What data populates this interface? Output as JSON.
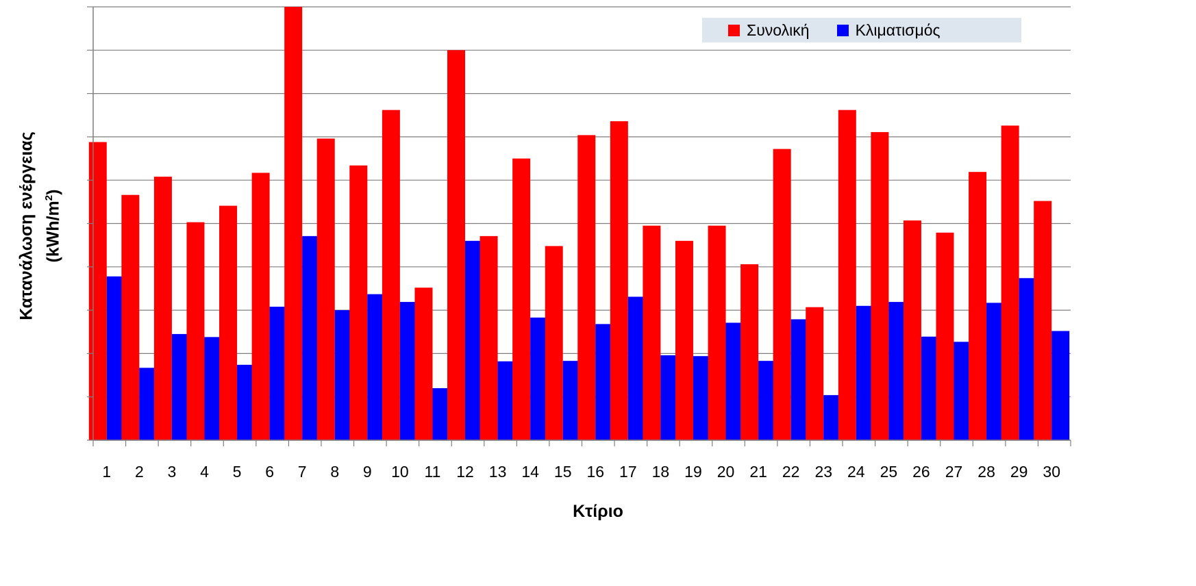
{
  "chart_data": {
    "type": "bar",
    "title": "",
    "xlabel": "Κτίριο",
    "ylabel_main": "Κατανάλωση ενέργειας",
    "ylabel_unit_prefix": "(kWh/m",
    "ylabel_unit_sup": "2",
    "ylabel_unit_suffix": ")",
    "ylim": [
      0,
      10
    ],
    "grid": true,
    "legend_position": "top-right",
    "categories": [
      "1",
      "2",
      "3",
      "4",
      "5",
      "6",
      "7",
      "8",
      "9",
      "10",
      "11",
      "12",
      "13",
      "14",
      "15",
      "16",
      "17",
      "18",
      "19",
      "20",
      "21",
      "22",
      "23",
      "24",
      "25",
      "26",
      "27",
      "28",
      "29",
      "30"
    ],
    "series": [
      {
        "name": "Συνολική",
        "color": "#ff0000",
        "values": [
          6.88,
          5.66,
          6.08,
          5.03,
          5.41,
          6.17,
          10.0,
          6.96,
          6.34,
          7.62,
          3.52,
          9.0,
          4.71,
          6.5,
          4.48,
          7.04,
          7.36,
          4.95,
          4.6,
          4.95,
          4.06,
          6.72,
          3.07,
          7.62,
          7.11,
          5.07,
          4.79,
          6.19,
          7.26,
          5.52
        ]
      },
      {
        "name": "Κλιματισμός",
        "color": "#0000ff",
        "values": [
          3.78,
          1.67,
          2.45,
          2.38,
          1.74,
          3.08,
          4.71,
          3.0,
          3.37,
          3.19,
          1.2,
          4.6,
          1.82,
          2.83,
          1.83,
          2.68,
          3.31,
          1.96,
          1.94,
          2.71,
          1.83,
          2.79,
          1.04,
          3.1,
          3.19,
          2.39,
          2.27,
          3.17,
          3.74,
          2.52
        ]
      }
    ]
  }
}
